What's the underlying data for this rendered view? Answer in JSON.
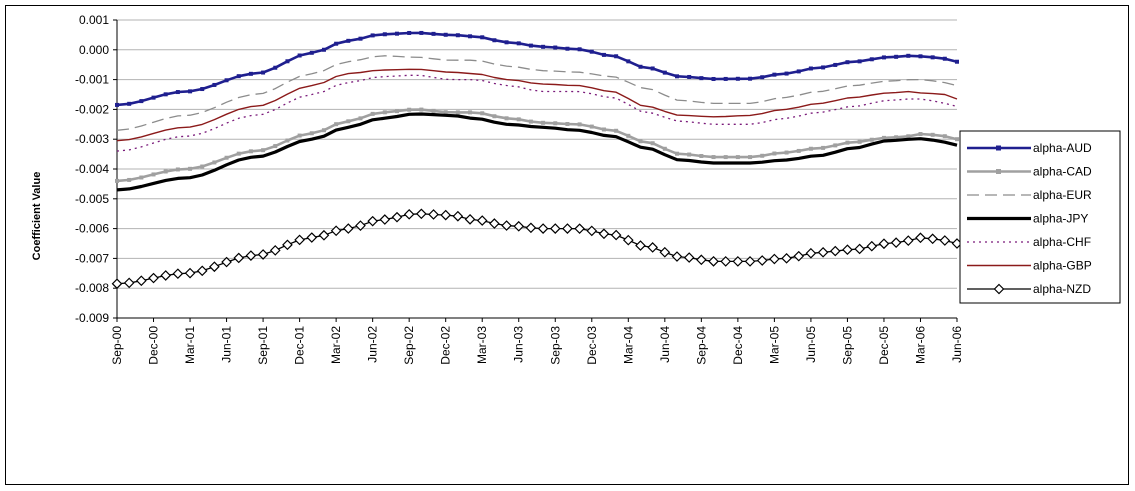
{
  "chart_data": {
    "type": "line",
    "xlabel": "",
    "ylabel": "Coefficient Value",
    "ylim": [
      -0.009,
      0.001
    ],
    "yticks": [
      "0.001",
      "0.000",
      "-0.001",
      "-0.002",
      "-0.003",
      "-0.004",
      "-0.005",
      "-0.006",
      "-0.007",
      "-0.008",
      "-0.009"
    ],
    "x_range": [
      "Sep-00",
      "Jun-06"
    ],
    "n_points": 70,
    "xticks": [
      "Sep-00",
      "Dec-00",
      "Mar-01",
      "Jun-01",
      "Sep-01",
      "Dec-01",
      "Mar-02",
      "Jun-02",
      "Sep-02",
      "Dec-02",
      "Mar-03",
      "Jun-03",
      "Sep-03",
      "Dec-03",
      "Mar-04",
      "Jun-04",
      "Sep-04",
      "Dec-04",
      "Mar-05",
      "Jun-05",
      "Sep-05",
      "Dec-05",
      "Mar-06",
      "Jun-06"
    ],
    "grid": "horizontal",
    "legend_position": "right",
    "series": [
      {
        "name": "alpha-AUD",
        "color": "#1f1f8f",
        "width": 2.6,
        "dash": "",
        "marker": "square",
        "keys": [
          [
            0,
            -0.00185
          ],
          [
            6,
            -0.0014
          ],
          [
            12,
            -0.0008
          ],
          [
            17,
            -0.0001
          ],
          [
            20,
            0.0003
          ],
          [
            23,
            0.00052
          ],
          [
            26,
            0.00057
          ],
          [
            29,
            0.0005
          ],
          [
            31,
            0.00045
          ],
          [
            34,
            0.00025
          ],
          [
            37,
            0.0001
          ],
          [
            40,
            2e-05
          ],
          [
            43,
            -0.0002
          ],
          [
            46,
            -0.0006
          ],
          [
            49,
            -0.0009
          ],
          [
            52,
            -0.00098
          ],
          [
            55,
            -0.00097
          ],
          [
            58,
            -0.0008
          ],
          [
            61,
            -0.0006
          ],
          [
            64,
            -0.0004
          ],
          [
            67,
            -0.00025
          ],
          [
            69,
            -0.0002
          ],
          [
            70,
            -0.00022
          ],
          [
            72,
            -0.0003
          ],
          [
            73,
            -0.0004
          ]
        ]
      },
      {
        "name": "alpha-CAD",
        "color": "#a0a0a0",
        "width": 2.6,
        "dash": "",
        "marker": "square",
        "keys": [
          [
            0,
            -0.0044
          ],
          [
            6,
            -0.004
          ],
          [
            12,
            -0.0034
          ],
          [
            17,
            -0.0028
          ],
          [
            20,
            -0.0024
          ],
          [
            23,
            -0.0021
          ],
          [
            26,
            -0.002
          ],
          [
            29,
            -0.0021
          ],
          [
            31,
            -0.0021
          ],
          [
            34,
            -0.0023
          ],
          [
            37,
            -0.00245
          ],
          [
            40,
            -0.0025
          ],
          [
            43,
            -0.0027
          ],
          [
            46,
            -0.0031
          ],
          [
            49,
            -0.0035
          ],
          [
            52,
            -0.0036
          ],
          [
            55,
            -0.0036
          ],
          [
            58,
            -0.00345
          ],
          [
            61,
            -0.0033
          ],
          [
            64,
            -0.0031
          ],
          [
            67,
            -0.00295
          ],
          [
            69,
            -0.0029
          ],
          [
            70,
            -0.00282
          ],
          [
            72,
            -0.0029
          ],
          [
            73,
            -0.003
          ]
        ]
      },
      {
        "name": "alpha-EUR",
        "color": "#8c8c8c",
        "width": 1.3,
        "dash": "12,6",
        "marker": "none",
        "keys": [
          [
            0,
            -0.0027
          ],
          [
            6,
            -0.0022
          ],
          [
            12,
            -0.0015
          ],
          [
            17,
            -0.0008
          ],
          [
            20,
            -0.0004
          ],
          [
            23,
            -0.0002
          ],
          [
            26,
            -0.00025
          ],
          [
            29,
            -0.00035
          ],
          [
            31,
            -0.00035
          ],
          [
            34,
            -0.00055
          ],
          [
            37,
            -0.0007
          ],
          [
            40,
            -0.00075
          ],
          [
            43,
            -0.0009
          ],
          [
            46,
            -0.0013
          ],
          [
            49,
            -0.0017
          ],
          [
            52,
            -0.0018
          ],
          [
            55,
            -0.0018
          ],
          [
            58,
            -0.0016
          ],
          [
            61,
            -0.0014
          ],
          [
            64,
            -0.0012
          ],
          [
            67,
            -0.00105
          ],
          [
            69,
            -0.001
          ],
          [
            70,
            -0.001
          ],
          [
            72,
            -0.0011
          ],
          [
            73,
            -0.0012
          ]
        ]
      },
      {
        "name": "alpha-JPY",
        "color": "#000000",
        "width": 3.2,
        "dash": "",
        "marker": "none",
        "keys": [
          [
            0,
            -0.0047
          ],
          [
            6,
            -0.0043
          ],
          [
            12,
            -0.0036
          ],
          [
            17,
            -0.003
          ],
          [
            20,
            -0.0026
          ],
          [
            23,
            -0.0023
          ],
          [
            26,
            -0.00215
          ],
          [
            29,
            -0.0022
          ],
          [
            31,
            -0.0023
          ],
          [
            34,
            -0.0025
          ],
          [
            37,
            -0.0026
          ],
          [
            40,
            -0.0027
          ],
          [
            43,
            -0.0029
          ],
          [
            46,
            -0.0033
          ],
          [
            49,
            -0.0037
          ],
          [
            52,
            -0.0038
          ],
          [
            55,
            -0.0038
          ],
          [
            58,
            -0.0037
          ],
          [
            61,
            -0.00355
          ],
          [
            64,
            -0.0033
          ],
          [
            67,
            -0.00305
          ],
          [
            69,
            -0.003
          ],
          [
            70,
            -0.00298
          ],
          [
            72,
            -0.0031
          ],
          [
            73,
            -0.0032
          ]
        ]
      },
      {
        "name": "alpha-CHF",
        "color": "#7a1a7a",
        "width": 1.3,
        "dash": "2,4",
        "marker": "none",
        "keys": [
          [
            0,
            -0.0034
          ],
          [
            6,
            -0.0029
          ],
          [
            12,
            -0.0022
          ],
          [
            17,
            -0.0015
          ],
          [
            20,
            -0.0011
          ],
          [
            23,
            -0.0009
          ],
          [
            26,
            -0.00085
          ],
          [
            29,
            -0.001
          ],
          [
            31,
            -0.001
          ],
          [
            34,
            -0.0012
          ],
          [
            37,
            -0.0014
          ],
          [
            40,
            -0.0014
          ],
          [
            43,
            -0.0016
          ],
          [
            46,
            -0.0021
          ],
          [
            49,
            -0.0024
          ],
          [
            52,
            -0.0025
          ],
          [
            55,
            -0.0025
          ],
          [
            58,
            -0.0023
          ],
          [
            61,
            -0.0021
          ],
          [
            64,
            -0.0019
          ],
          [
            67,
            -0.0017
          ],
          [
            69,
            -0.00165
          ],
          [
            70,
            -0.00165
          ],
          [
            72,
            -0.0018
          ],
          [
            73,
            -0.0019
          ]
        ]
      },
      {
        "name": "alpha-GBP",
        "color": "#8b1a1a",
        "width": 1.4,
        "dash": "",
        "marker": "none",
        "keys": [
          [
            0,
            -0.00305
          ],
          [
            6,
            -0.0026
          ],
          [
            12,
            -0.0019
          ],
          [
            17,
            -0.0012
          ],
          [
            20,
            -0.0008
          ],
          [
            23,
            -0.00068
          ],
          [
            26,
            -0.00065
          ],
          [
            29,
            -0.00075
          ],
          [
            31,
            -0.0008
          ],
          [
            34,
            -0.001
          ],
          [
            37,
            -0.00115
          ],
          [
            40,
            -0.0012
          ],
          [
            43,
            -0.0014
          ],
          [
            46,
            -0.0019
          ],
          [
            49,
            -0.0022
          ],
          [
            52,
            -0.00225
          ],
          [
            55,
            -0.0022
          ],
          [
            58,
            -0.002
          ],
          [
            61,
            -0.0018
          ],
          [
            64,
            -0.0016
          ],
          [
            67,
            -0.00145
          ],
          [
            69,
            -0.0014
          ],
          [
            70,
            -0.00145
          ],
          [
            72,
            -0.0015
          ],
          [
            73,
            -0.00165
          ]
        ]
      },
      {
        "name": "alpha-NZD",
        "color": "#000000",
        "width": 1.3,
        "dash": "",
        "marker": "diamond",
        "keys": [
          [
            0,
            -0.00785
          ],
          [
            6,
            -0.0075
          ],
          [
            12,
            -0.0069
          ],
          [
            17,
            -0.0063
          ],
          [
            20,
            -0.006
          ],
          [
            23,
            -0.0057
          ],
          [
            26,
            -0.0055
          ],
          [
            29,
            -0.00555
          ],
          [
            31,
            -0.0057
          ],
          [
            34,
            -0.0059
          ],
          [
            37,
            -0.006
          ],
          [
            40,
            -0.006
          ],
          [
            43,
            -0.0062
          ],
          [
            46,
            -0.0066
          ],
          [
            49,
            -0.00695
          ],
          [
            52,
            -0.0071
          ],
          [
            55,
            -0.0071
          ],
          [
            58,
            -0.007
          ],
          [
            61,
            -0.0068
          ],
          [
            64,
            -0.0067
          ],
          [
            67,
            -0.0065
          ],
          [
            69,
            -0.0064
          ],
          [
            70,
            -0.0063
          ],
          [
            72,
            -0.0064
          ],
          [
            73,
            -0.0065
          ]
        ]
      }
    ]
  }
}
